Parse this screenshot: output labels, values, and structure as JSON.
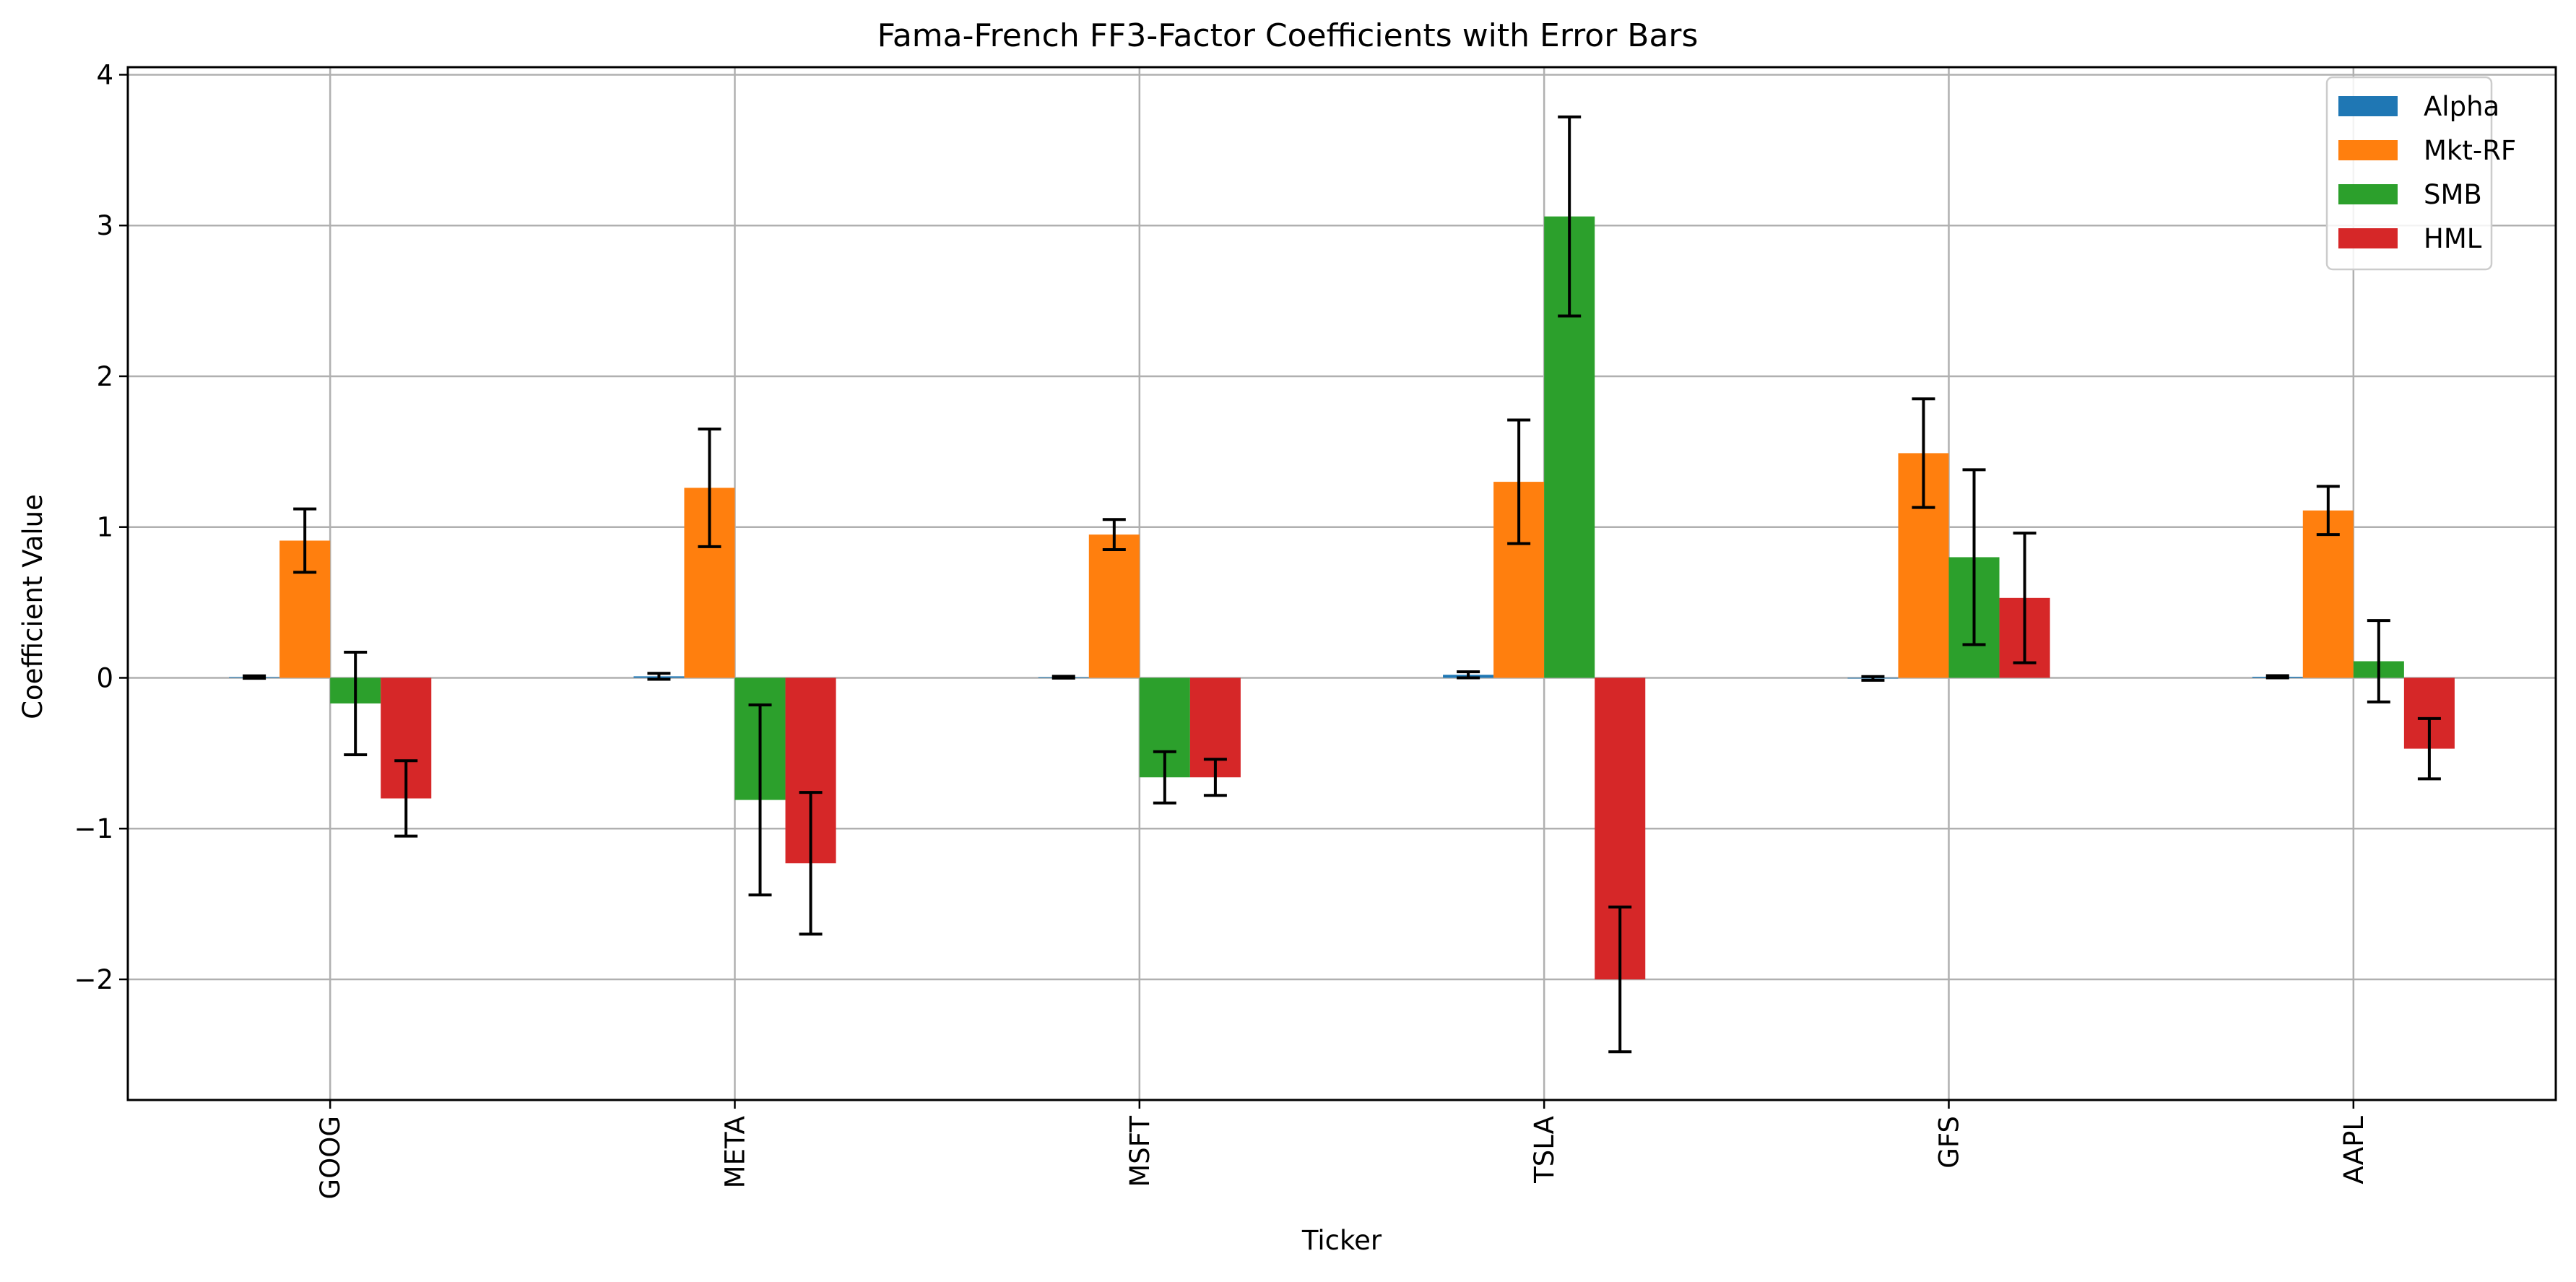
{
  "chart_data": {
    "type": "bar",
    "title": "Fama-French FF3-Factor Coefficients with Error Bars",
    "xlabel": "Ticker",
    "ylabel": "Coefficient Value",
    "ylim": [
      -2.8,
      4.05
    ],
    "yticks": [
      -2,
      -1,
      0,
      1,
      2,
      3,
      4
    ],
    "ytick_labels": [
      "−2",
      "−1",
      "0",
      "1",
      "2",
      "3",
      "4"
    ],
    "grid": true,
    "legend_position": "top-right",
    "categories": [
      "GOOG",
      "META",
      "MSFT",
      "TSLA",
      "GFS",
      "AAPL"
    ],
    "series": [
      {
        "name": "Alpha",
        "color": "#1f77b4",
        "values": [
          0.005,
          0.01,
          0.004,
          0.02,
          -0.004,
          0.007
        ],
        "errors": [
          0.008,
          0.02,
          0.006,
          0.02,
          0.012,
          0.007
        ]
      },
      {
        "name": "Mkt-RF",
        "color": "#ff7f0e",
        "values": [
          0.91,
          1.26,
          0.95,
          1.3,
          1.49,
          1.11
        ],
        "errors": [
          0.21,
          0.39,
          0.1,
          0.41,
          0.36,
          0.16
        ]
      },
      {
        "name": "SMB",
        "color": "#2ca02c",
        "values": [
          -0.17,
          -0.81,
          -0.66,
          3.06,
          0.8,
          0.11
        ],
        "errors": [
          0.34,
          0.63,
          0.17,
          0.66,
          0.58,
          0.27
        ]
      },
      {
        "name": "HML",
        "color": "#d62728",
        "values": [
          -0.8,
          -1.23,
          -0.66,
          -2.0,
          0.53,
          -0.47
        ],
        "errors": [
          0.25,
          0.47,
          0.12,
          0.48,
          0.43,
          0.2
        ]
      }
    ]
  }
}
